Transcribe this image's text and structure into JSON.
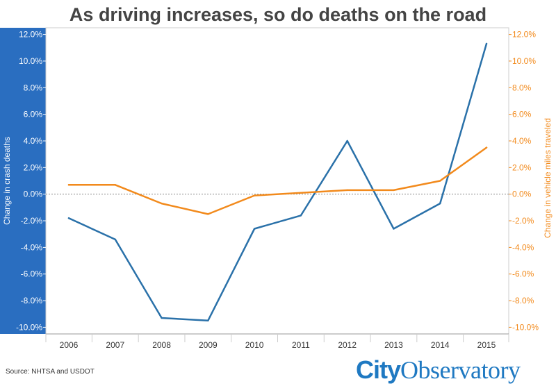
{
  "title": "As driving increases, so do deaths on the road",
  "source": "Source: NHTSA and USDOT",
  "logo": {
    "part1": "City",
    "part2": "Observatory"
  },
  "colors": {
    "deaths": "#2a71a9",
    "vmt": "#f28a1c",
    "left_band": "#2a6ec0"
  },
  "chart_data": {
    "type": "line",
    "title": "As driving increases, so do deaths on the road",
    "x": [
      "2006",
      "2007",
      "2008",
      "2009",
      "2010",
      "2011",
      "2012",
      "2013",
      "2014",
      "2015"
    ],
    "series": [
      {
        "name": "Change in crash deaths",
        "axis": "left",
        "color": "#2a71a9",
        "values": [
          -1.8,
          -3.4,
          -9.3,
          -9.5,
          -2.6,
          -1.6,
          4.0,
          -2.6,
          -0.7,
          11.3
        ]
      },
      {
        "name": "Change in vehicle miles traveled",
        "axis": "right",
        "color": "#f28a1c",
        "values": [
          0.7,
          0.7,
          -0.7,
          -1.5,
          -0.1,
          0.1,
          0.3,
          0.3,
          1.0,
          3.5
        ]
      }
    ],
    "ylabel_left": "Change in crash deaths",
    "ylabel_right": "Change in vehicle miles traveled",
    "ylim": [
      -10.5,
      12.5
    ],
    "yticks": [
      12,
      10,
      8,
      6,
      4,
      2,
      0,
      -2,
      -4,
      -6,
      -8,
      -10
    ],
    "ytick_labels": [
      "12.0%",
      "10.0%",
      "8.0%",
      "6.0%",
      "4.0%",
      "2.0%",
      "0.0%",
      "-2.0%",
      "-4.0%",
      "-6.0%",
      "-8.0%",
      "-10.0%"
    ],
    "grid": false,
    "zero_line": true
  }
}
